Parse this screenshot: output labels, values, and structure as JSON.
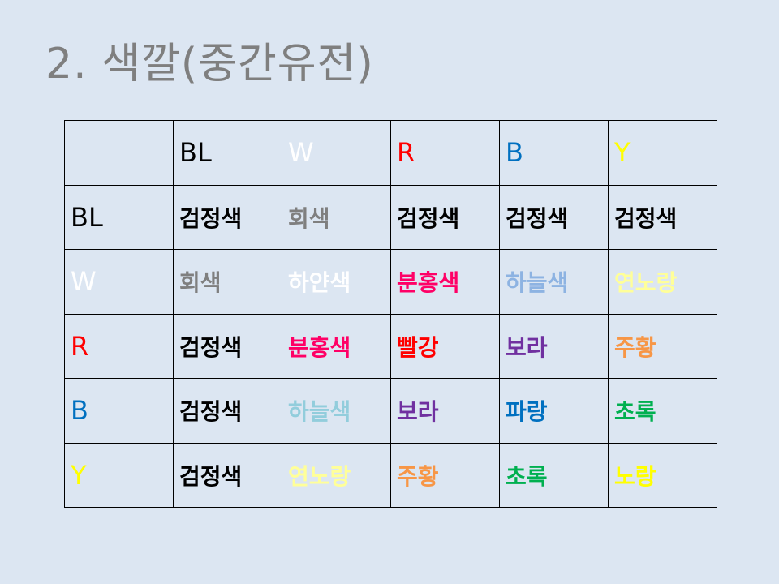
{
  "title": "2. 색깔(중간유전)",
  "colors": {
    "black": "#000000",
    "gray": "#7f7f7f",
    "white": "#ffffff",
    "red": "#ff0000",
    "blue": "#0070c0",
    "yellow": "#ffff00",
    "pink": "#ff0066",
    "skyblue": "#8db3e2",
    "lightblue": "#92cddc",
    "lightyellow": "#ffff99",
    "purple": "#7030a0",
    "orange": "#f79646",
    "green": "#00b050"
  },
  "table": {
    "header": [
      {
        "text": "",
        "color": "black"
      },
      {
        "text": "BL",
        "color": "black"
      },
      {
        "text": "W",
        "color": "white"
      },
      {
        "text": "R",
        "color": "red"
      },
      {
        "text": "B",
        "color": "blue"
      },
      {
        "text": "Y",
        "color": "yellow"
      }
    ],
    "rows": [
      [
        {
          "text": "BL",
          "color": "black"
        },
        {
          "text": "검정색",
          "color": "black"
        },
        {
          "text": "회색",
          "color": "gray"
        },
        {
          "text": "검정색",
          "color": "black"
        },
        {
          "text": "검정색",
          "color": "black"
        },
        {
          "text": "검정색",
          "color": "black"
        }
      ],
      [
        {
          "text": "W",
          "color": "white"
        },
        {
          "text": "회색",
          "color": "gray"
        },
        {
          "text": "하얀색",
          "color": "white"
        },
        {
          "text": "분홍색",
          "color": "pink"
        },
        {
          "text": "하늘색",
          "color": "skyblue"
        },
        {
          "text": "연노랑",
          "color": "lightyellow"
        }
      ],
      [
        {
          "text": "R",
          "color": "red"
        },
        {
          "text": "검정색",
          "color": "black"
        },
        {
          "text": "분홍색",
          "color": "pink"
        },
        {
          "text": "빨강",
          "color": "red"
        },
        {
          "text": "보라",
          "color": "purple"
        },
        {
          "text": "주황",
          "color": "orange"
        }
      ],
      [
        {
          "text": "B",
          "color": "blue"
        },
        {
          "text": "검정색",
          "color": "black"
        },
        {
          "text": "하늘색",
          "color": "lightblue"
        },
        {
          "text": "보라",
          "color": "purple"
        },
        {
          "text": "파랑",
          "color": "blue"
        },
        {
          "text": "초록",
          "color": "green"
        }
      ],
      [
        {
          "text": "Y",
          "color": "yellow"
        },
        {
          "text": "검정색",
          "color": "black"
        },
        {
          "text": "연노랑",
          "color": "lightyellow"
        },
        {
          "text": "주황",
          "color": "orange"
        },
        {
          "text": "초록",
          "color": "green"
        },
        {
          "text": "노랑",
          "color": "yellow"
        }
      ]
    ]
  }
}
